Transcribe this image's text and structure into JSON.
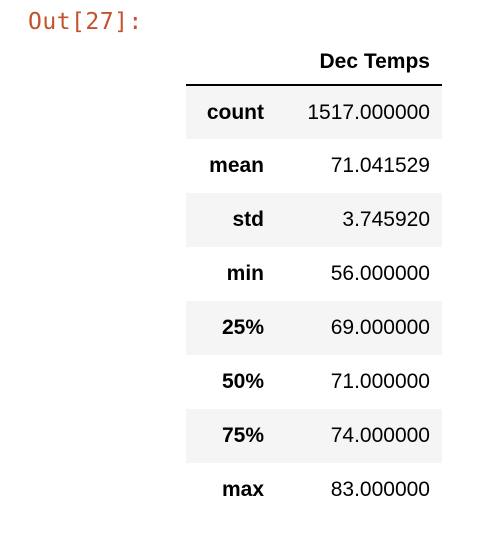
{
  "cell": {
    "out_label": "Out[27]:"
  },
  "dataframe": {
    "column_header": "Dec Temps",
    "rows": [
      {
        "index": "count",
        "value": "1517.000000"
      },
      {
        "index": "mean",
        "value": "71.041529"
      },
      {
        "index": "std",
        "value": "3.745920"
      },
      {
        "index": "min",
        "value": "56.000000"
      },
      {
        "index": "25%",
        "value": "69.000000"
      },
      {
        "index": "50%",
        "value": "71.000000"
      },
      {
        "index": "75%",
        "value": "74.000000"
      },
      {
        "index": "max",
        "value": "83.000000"
      }
    ]
  },
  "colors": {
    "prompt": "#c2532d",
    "row_stripe": "#f5f5f5"
  }
}
